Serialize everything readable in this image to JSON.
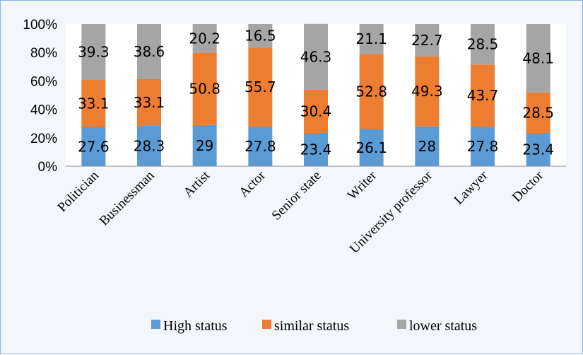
{
  "chart_data": {
    "type": "bar",
    "stacked": true,
    "percent_stacked": true,
    "title": "",
    "xlabel": "",
    "ylabel": "",
    "ylim": [
      0,
      100
    ],
    "y_ticks": [
      "0%",
      "20%",
      "40%",
      "60%",
      "80%",
      "100%"
    ],
    "grid": false,
    "legend_position": "bottom",
    "categories": [
      "Politician",
      "Businessman",
      "Artist",
      "Actor",
      "Senior state",
      "Writer",
      "University professor",
      "Lawyer",
      "Doctor"
    ],
    "series": [
      {
        "name": "High status",
        "color": "#5b9bd5",
        "values": [
          27.6,
          28.3,
          29,
          27.8,
          23.4,
          26.1,
          28,
          27.8,
          23.4
        ]
      },
      {
        "name": "similar status",
        "color": "#ed7d31",
        "values": [
          33.1,
          33.1,
          50.8,
          55.7,
          30.4,
          52.8,
          49.3,
          43.7,
          28.5
        ]
      },
      {
        "name": "lower status",
        "color": "#a5a5a5",
        "values": [
          39.3,
          38.6,
          20.2,
          16.5,
          46.3,
          21.1,
          22.7,
          28.5,
          48.1
        ]
      }
    ]
  }
}
